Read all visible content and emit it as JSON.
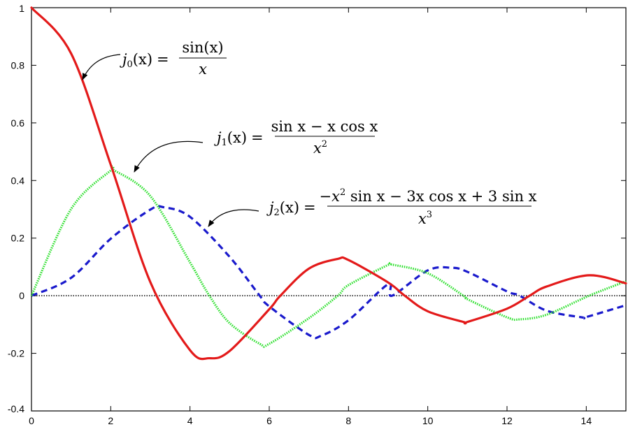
{
  "chart_data": {
    "type": "line",
    "title": "",
    "xlabel": "",
    "ylabel": "",
    "xlim": [
      0,
      15
    ],
    "ylim": [
      -0.4,
      1
    ],
    "x_ticks": [
      "0",
      "2",
      "4",
      "6",
      "8",
      "10",
      "12",
      "14"
    ],
    "y_ticks": [
      "-0.4",
      "-0.2",
      "0",
      "0.2",
      "0.4",
      "0.6",
      "0.8",
      "1"
    ],
    "grid": false,
    "series": [
      {
        "function": "j0",
        "color": "#e31a1a",
        "style": "solid",
        "x": [
          0,
          1,
          2,
          3,
          4,
          4.49,
          5,
          6,
          6.28,
          7,
          7.73,
          8,
          9,
          9.42,
          10,
          10.9,
          11,
          12,
          12.57,
          13,
          14.07,
          15
        ],
        "y": [
          1,
          0.841,
          0.455,
          0.047,
          -0.189,
          -0.217,
          -0.192,
          -0.047,
          0,
          0.094,
          0.128,
          0.124,
          0.046,
          0,
          -0.054,
          -0.091,
          -0.091,
          -0.045,
          0,
          0.032,
          0.071,
          0.043
        ]
      },
      {
        "function": "j1",
        "color": "#33e033",
        "style": "dotted",
        "x": [
          0,
          1,
          2,
          2.08,
          3,
          4,
          4.49,
          5,
          5.76,
          6,
          7,
          7.73,
          8,
          9,
          9.1,
          10,
          10.9,
          11,
          12,
          12.32,
          13,
          14.07,
          15
        ],
        "y": [
          0,
          0.301,
          0.435,
          0.436,
          0.346,
          0.116,
          0,
          -0.095,
          -0.167,
          -0.167,
          -0.078,
          0,
          0.037,
          0.107,
          0.108,
          0.078,
          0,
          -0.012,
          -0.075,
          -0.082,
          -0.066,
          0,
          0.05
        ]
      },
      {
        "function": "j2",
        "color": "#1a1acc",
        "style": "dashed",
        "x": [
          0,
          1,
          2,
          3,
          3.34,
          4,
          5,
          5.76,
          6,
          7,
          7.31,
          8,
          9,
          9.1,
          10,
          10.6,
          11,
          12,
          12.32,
          13,
          13.89,
          14,
          15
        ],
        "y": [
          0,
          0.062,
          0.198,
          0.299,
          0.307,
          0.274,
          0.135,
          0,
          -0.037,
          -0.136,
          -0.139,
          -0.085,
          0.04,
          0,
          0.088,
          0.097,
          0.083,
          0.015,
          0,
          -0.052,
          -0.075,
          -0.074,
          -0.033
        ]
      }
    ],
    "annotations": [
      {
        "id": "j0",
        "name": "j",
        "subscript": "0",
        "arg": "(x)",
        "eq": "=",
        "numerator": "sin(x)",
        "denominator": "x"
      },
      {
        "id": "j1",
        "name": "j",
        "subscript": "1",
        "arg": "(x)",
        "eq": "=",
        "numerator": "sin x − x cos x",
        "denominator": "x",
        "denominator_power": "2"
      },
      {
        "id": "j2",
        "name": "j",
        "subscript": "2",
        "arg": "(x)",
        "eq": "=",
        "numerator_lead": "−x",
        "numerator_lead_power": "2",
        "numerator_rest": " sin x − 3x cos x + 3 sin x",
        "denominator": "x",
        "denominator_power": "3"
      }
    ]
  }
}
